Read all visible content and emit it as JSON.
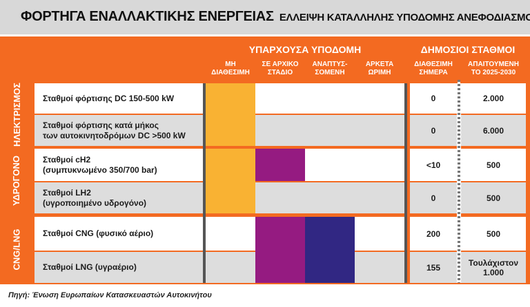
{
  "title": {
    "main": "ΦΟΡΤΗΓΑ ΕΝΑΛΛΑΚΤΙΚΗΣ ΕΝΕΡΓΕΙΑΣ",
    "sub": "ΕΛΛΕΙΨΗ ΚΑΤΑΛΛΗΛΗΣ ΥΠΟΔΟΜΗΣ ΑΝΕΦΟΔΙΑΣΜΟΥ"
  },
  "headers": {
    "existing_group": "ΥΠΑΡΧΟΥΣΑ ΥΠΟΔΟΜΗ",
    "public_group": "ΔΗΜΟΣΙΟΙ ΣΤΑΘΜΟΙ",
    "col_unavailable": [
      "ΜΗ",
      "ΔΙΑΘΕΣΙΜΗ"
    ],
    "col_early": [
      "ΣΕ ΑΡΧΙΚΟ",
      "ΣΤΑΔΙΟ"
    ],
    "col_developing": [
      "ΑΝΑΠΤΥΣ-",
      "ΣΟΜΕΝΗ"
    ],
    "col_mature": [
      "ΑΡΚΕΤΑ",
      "ΩΡΙΜΗ"
    ],
    "col_available_today": [
      "ΔΙΑΘΕΣΙΜΗ",
      "ΣΗΜΕΡΑ"
    ],
    "col_required": [
      "ΑΠΑΙΤΟΥΜΕΝΗ",
      "ΤΟ 2025-2030"
    ]
  },
  "sections": [
    {
      "name": "ΗΛΕΚΤΡΙΣΜΟΣ"
    },
    {
      "name": "ΥΔΡΟΓΟΝΟ"
    },
    {
      "name": "CNG/LNG"
    }
  ],
  "rows": [
    {
      "label": [
        "Σταθμοί φόρτισης DC 150-500 kW"
      ],
      "available": "0",
      "required": [
        "2.000"
      ],
      "stage": "unavailable"
    },
    {
      "label": [
        "Σταθμοί φόρτισης κατά μήκος",
        "των αυτοκινητοδρόμων DC >500 kW"
      ],
      "available": "0",
      "required": [
        "6.000"
      ],
      "stage": "unavailable"
    },
    {
      "label": [
        "Σταθμοί cH2",
        "(συμπυκνωμένο 350/700 bar)"
      ],
      "available": "<10",
      "required": [
        "500"
      ],
      "stage": "early"
    },
    {
      "label": [
        "Σταθμοί LH2",
        "(υγροποιημένο υδρογόνο)"
      ],
      "available": "0",
      "required": [
        "500"
      ],
      "stage": "unavailable"
    },
    {
      "label": [
        "Σταθμοί CNG (φυσικό αέριο)"
      ],
      "available": "200",
      "required": [
        "500"
      ],
      "stage": "developing"
    },
    {
      "label": [
        "Σταθμοί LNG (υγραέριο)"
      ],
      "available": "155",
      "required": [
        "Τουλάχιστον",
        "1.000"
      ],
      "stage": "developing"
    }
  ],
  "colors": {
    "frame": "#f36a21",
    "unavailable": "#f9b233",
    "early": "#951b81",
    "developing": "#312783",
    "row_white": "#ffffff",
    "row_gray": "#dddddd"
  },
  "source": "Πηγή: Ένωση Ευρωπαίων Κατασκευαστών Αυτοκινήτου"
}
